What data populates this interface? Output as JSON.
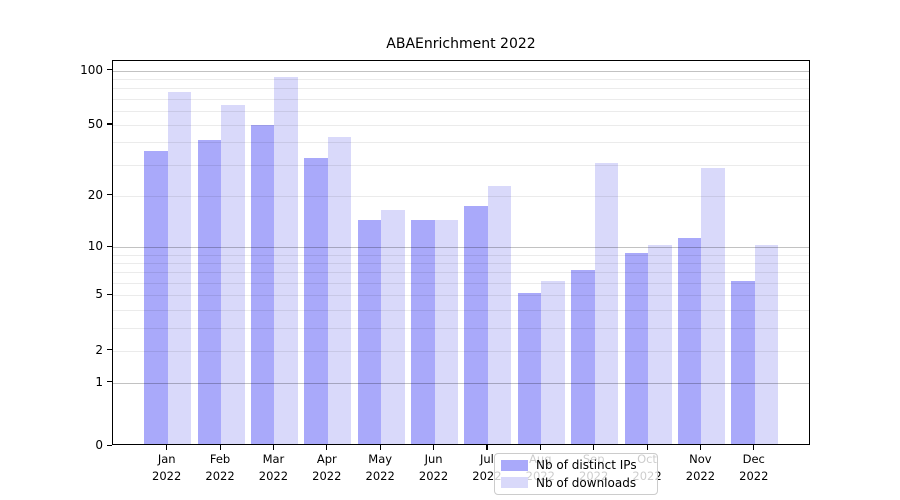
{
  "title": "ABAEnrichment 2022",
  "colors": {
    "distinct_ips": "#a9a9fa",
    "downloads": "#d9d9fa",
    "axis": "#000000",
    "grid_minor": "rgba(0,0,0,0.08)",
    "grid_major": "rgba(0,0,0,0.24)",
    "legend_border": "#cccccc"
  },
  "legend": {
    "items": [
      {
        "label": "Nb of distinct IPs",
        "series": "distinct_ips"
      },
      {
        "label": "Nb of downloads",
        "series": "downloads"
      }
    ]
  },
  "y_axis": {
    "ticks": [
      100,
      50,
      20,
      10,
      5,
      2,
      1,
      0
    ]
  },
  "x_axis": {
    "months": [
      "Jan",
      "Feb",
      "Mar",
      "Apr",
      "May",
      "Jun",
      "Jul",
      "Aug",
      "Sep",
      "Oct",
      "Nov",
      "Dec"
    ],
    "year": "2022"
  },
  "chart_data": {
    "type": "bar",
    "title": "ABAEnrichment 2022",
    "categories": [
      "Jan 2022",
      "Feb 2022",
      "Mar 2022",
      "Apr 2022",
      "May 2022",
      "Jun 2022",
      "Jul 2022",
      "Aug 2022",
      "Sep 2022",
      "Oct 2022",
      "Nov 2022",
      "Dec 2022"
    ],
    "series": [
      {
        "name": "Nb of distinct IPs",
        "values": [
          35,
          40,
          49,
          32,
          14,
          14,
          17,
          5,
          7,
          9,
          11,
          6
        ]
      },
      {
        "name": "Nb of downloads",
        "values": [
          74,
          63,
          90,
          42,
          16,
          14,
          22,
          6,
          30,
          10,
          28,
          10
        ]
      }
    ],
    "xlabel": "",
    "ylabel": "",
    "y_scale": "log1p",
    "y_ticks": [
      0,
      1,
      2,
      5,
      10,
      20,
      50,
      100
    ],
    "grid_minor_values": [
      2,
      3,
      4,
      5,
      6,
      7,
      8,
      9,
      20,
      30,
      40,
      50,
      60,
      70,
      80,
      90
    ],
    "grid_major_values": [
      1,
      10,
      100
    ],
    "ylim": [
      0,
      105
    ],
    "grid": "horizontal",
    "legend_position": "inside-bottom-center"
  }
}
